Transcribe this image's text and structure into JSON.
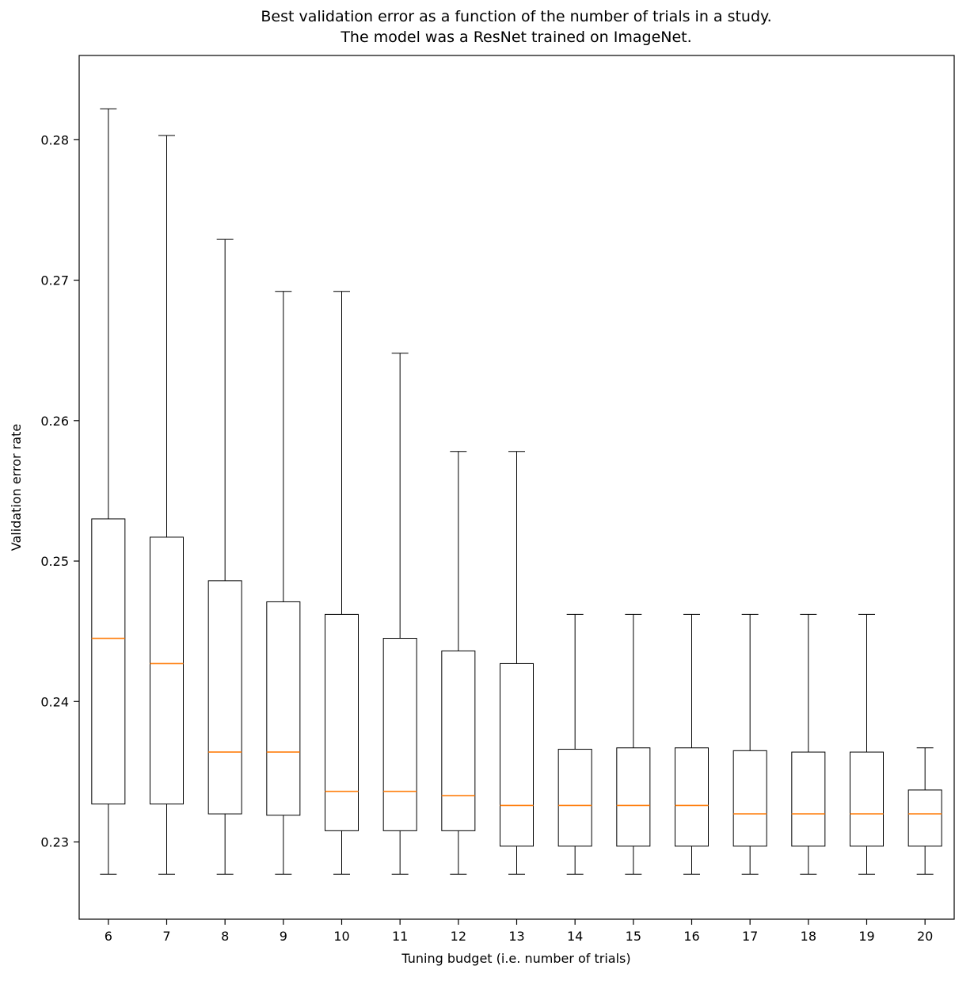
{
  "chart_data": {
    "type": "box",
    "title_line1": "Best validation error as a function of the number of trials in a study.",
    "title_line2": "The model was a ResNet trained on ImageNet.",
    "xlabel": "Tuning budget (i.e. number of trials)",
    "ylabel": "Validation error rate",
    "categories": [
      6,
      7,
      8,
      9,
      10,
      11,
      12,
      13,
      14,
      15,
      16,
      17,
      18,
      19,
      20
    ],
    "yticks": [
      0.23,
      0.24,
      0.25,
      0.26,
      0.27,
      0.28
    ],
    "ylim": [
      0.2245,
      0.286
    ],
    "grid": false,
    "legend": "none",
    "box_edge_color": "#000000",
    "median_color": "#ff7f0e",
    "boxes": [
      {
        "trials": 6,
        "whislo": 0.2277,
        "q1": 0.2327,
        "med": 0.2445,
        "q3": 0.253,
        "whishi": 0.2822
      },
      {
        "trials": 7,
        "whislo": 0.2277,
        "q1": 0.2327,
        "med": 0.2427,
        "q3": 0.2517,
        "whishi": 0.2803
      },
      {
        "trials": 8,
        "whislo": 0.2277,
        "q1": 0.232,
        "med": 0.2364,
        "q3": 0.2486,
        "whishi": 0.2729
      },
      {
        "trials": 9,
        "whislo": 0.2277,
        "q1": 0.2319,
        "med": 0.2364,
        "q3": 0.2471,
        "whishi": 0.2692
      },
      {
        "trials": 10,
        "whislo": 0.2277,
        "q1": 0.2308,
        "med": 0.2336,
        "q3": 0.2462,
        "whishi": 0.2692
      },
      {
        "trials": 11,
        "whislo": 0.2277,
        "q1": 0.2308,
        "med": 0.2336,
        "q3": 0.2445,
        "whishi": 0.2648
      },
      {
        "trials": 12,
        "whislo": 0.2277,
        "q1": 0.2308,
        "med": 0.2333,
        "q3": 0.2436,
        "whishi": 0.2578
      },
      {
        "trials": 13,
        "whislo": 0.2277,
        "q1": 0.2297,
        "med": 0.2326,
        "q3": 0.2427,
        "whishi": 0.2578
      },
      {
        "trials": 14,
        "whislo": 0.2277,
        "q1": 0.2297,
        "med": 0.2326,
        "q3": 0.2366,
        "whishi": 0.2462
      },
      {
        "trials": 15,
        "whislo": 0.2277,
        "q1": 0.2297,
        "med": 0.2326,
        "q3": 0.2367,
        "whishi": 0.2462
      },
      {
        "trials": 16,
        "whislo": 0.2277,
        "q1": 0.2297,
        "med": 0.2326,
        "q3": 0.2367,
        "whishi": 0.2462
      },
      {
        "trials": 17,
        "whislo": 0.2277,
        "q1": 0.2297,
        "med": 0.232,
        "q3": 0.2365,
        "whishi": 0.2462
      },
      {
        "trials": 18,
        "whislo": 0.2277,
        "q1": 0.2297,
        "med": 0.232,
        "q3": 0.2364,
        "whishi": 0.2462
      },
      {
        "trials": 19,
        "whislo": 0.2277,
        "q1": 0.2297,
        "med": 0.232,
        "q3": 0.2364,
        "whishi": 0.2462
      },
      {
        "trials": 20,
        "whislo": 0.2277,
        "q1": 0.2297,
        "med": 0.232,
        "q3": 0.2337,
        "whishi": 0.2367
      }
    ]
  }
}
